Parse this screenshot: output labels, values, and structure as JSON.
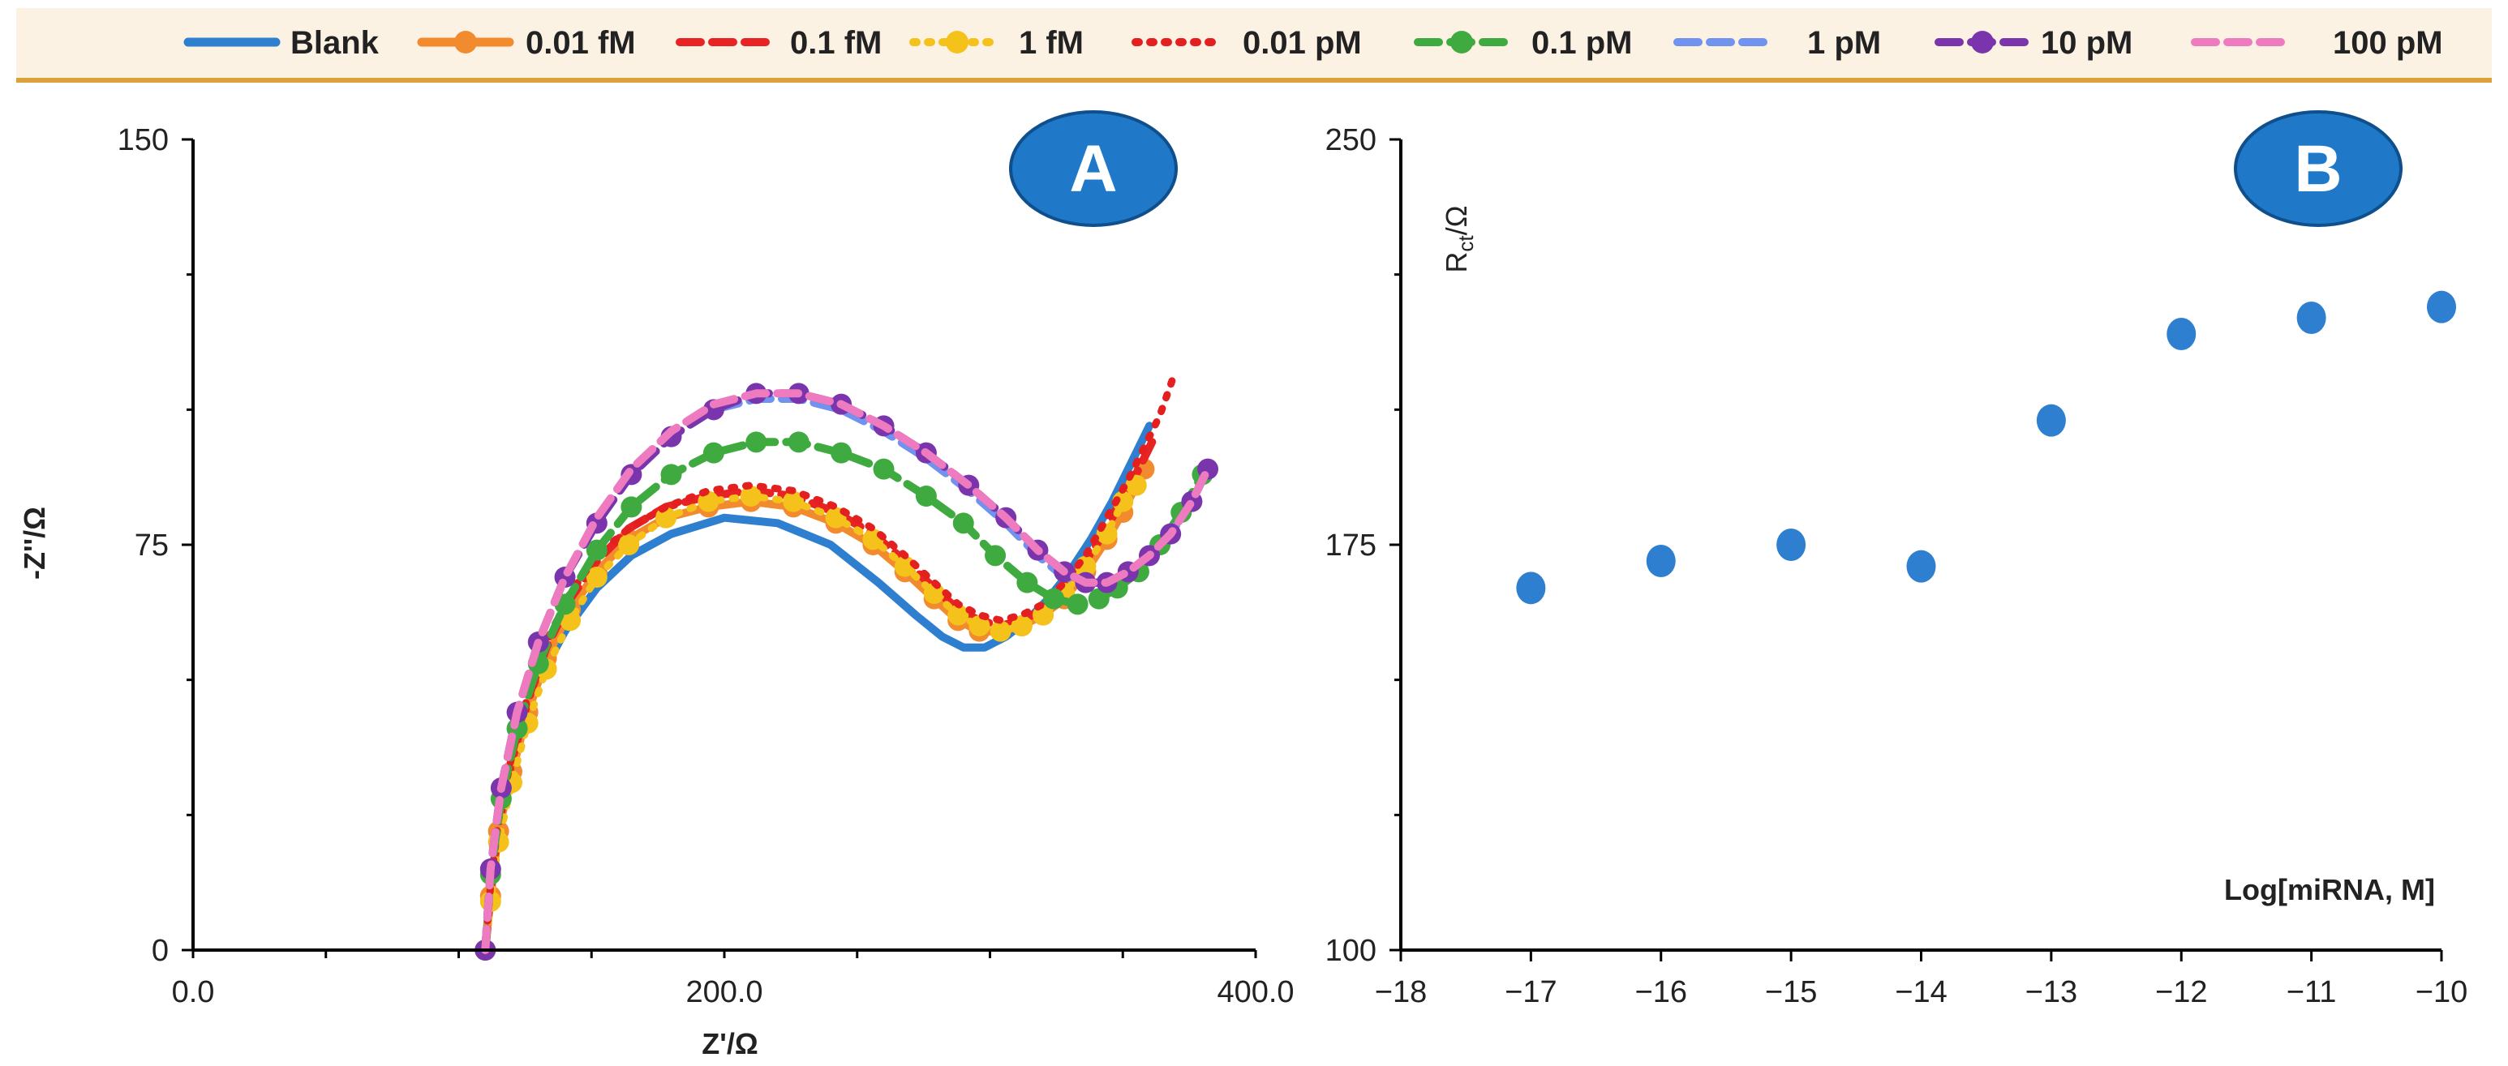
{
  "legend": [
    "Blank",
    "0.01 fM",
    "0.1 fM",
    "1 fM",
    "0.01 pM",
    "0.1 pM",
    "1 pM",
    "10 pM",
    "100 pM"
  ],
  "chart_data": [
    {
      "panel": "A",
      "type": "line",
      "title": "",
      "xlabel": "Z'/Ω",
      "ylabel": "-Z''/Ω",
      "xlim": [
        0,
        400
      ],
      "ylim": [
        0,
        150
      ],
      "xticks": [
        "0.0",
        "200.0",
        "400.0"
      ],
      "yticks": [
        "0",
        "75",
        "150"
      ],
      "series": [
        {
          "name": "Blank",
          "color": "#2f7fd0",
          "style": "solid",
          "marker": "none",
          "x": [
            110,
            112,
            116,
            122,
            130,
            140,
            152,
            165,
            180,
            200,
            220,
            240,
            258,
            272,
            282,
            290,
            298,
            306,
            314,
            322,
            330,
            338,
            346,
            352,
            357,
            360
          ],
          "y": [
            0,
            12,
            26,
            38,
            50,
            59,
            67,
            73,
            77,
            80,
            79,
            75,
            68,
            62,
            58,
            56,
            56,
            58,
            61,
            65,
            70,
            76,
            83,
            89,
            94,
            97
          ]
        },
        {
          "name": "0.01 fM",
          "color": "#f28a2e",
          "style": "solid",
          "marker": "circle",
          "x": [
            110,
            112,
            115,
            120,
            126,
            133,
            142,
            152,
            164,
            178,
            194,
            210,
            226,
            242,
            256,
            268,
            279,
            288,
            296,
            304,
            312,
            320,
            328,
            336,
            344,
            350,
            355,
            358
          ],
          "y": [
            0,
            10,
            22,
            33,
            44,
            54,
            63,
            70,
            76,
            80,
            82,
            83,
            82,
            79,
            75,
            70,
            65,
            61,
            59,
            59,
            60,
            62,
            65,
            70,
            76,
            81,
            86,
            89
          ]
        },
        {
          "name": "0.1 fM",
          "color": "#e82323",
          "style": "dashed",
          "marker": "none",
          "x": [
            110,
            112,
            115,
            120,
            126,
            133,
            142,
            152,
            164,
            178,
            194,
            210,
            226,
            242,
            256,
            268,
            279,
            288,
            296,
            304,
            312,
            320,
            328,
            336,
            344,
            350,
            356,
            361
          ],
          "y": [
            0,
            11,
            23,
            35,
            46,
            56,
            65,
            72,
            78,
            82,
            84,
            85,
            84,
            81,
            77,
            72,
            67,
            63,
            61,
            60,
            61,
            63,
            67,
            72,
            78,
            84,
            89,
            94
          ]
        },
        {
          "name": "1 fM",
          "color": "#f5c21b",
          "style": "dotted",
          "marker": "circle",
          "x": [
            110,
            112,
            115,
            120,
            126,
            133,
            142,
            152,
            164,
            178,
            194,
            210,
            226,
            242,
            256,
            268,
            279,
            288,
            296,
            304,
            312,
            320,
            328,
            336,
            344,
            350,
            355
          ],
          "y": [
            0,
            9,
            20,
            31,
            42,
            52,
            61,
            69,
            75,
            80,
            83,
            84,
            83,
            80,
            76,
            71,
            66,
            62,
            60,
            59,
            60,
            62,
            66,
            71,
            77,
            83,
            86
          ]
        },
        {
          "name": "0.01 pM",
          "color": "#e41f1f",
          "style": "dotted",
          "marker": "none",
          "x": [
            110,
            112,
            115,
            120,
            126,
            133,
            142,
            152,
            164,
            178,
            194,
            210,
            226,
            242,
            256,
            268,
            279,
            288,
            296,
            304,
            312,
            320,
            328,
            336,
            344,
            352,
            358,
            364,
            369
          ],
          "y": [
            0,
            12,
            24,
            36,
            47,
            57,
            66,
            73,
            78,
            82,
            85,
            86,
            85,
            82,
            78,
            73,
            68,
            64,
            62,
            61,
            62,
            64,
            68,
            73,
            80,
            87,
            93,
            99,
            106
          ]
        },
        {
          "name": "0.1 pM",
          "color": "#3faa3f",
          "style": "dashed",
          "marker": "circle",
          "x": [
            110,
            112,
            116,
            122,
            130,
            140,
            152,
            165,
            180,
            196,
            212,
            228,
            244,
            260,
            276,
            290,
            302,
            314,
            324,
            333,
            341,
            348,
            356,
            364,
            372,
            380
          ],
          "y": [
            0,
            14,
            28,
            41,
            53,
            64,
            74,
            82,
            88,
            92,
            94,
            94,
            92,
            89,
            84,
            79,
            73,
            68,
            65,
            64,
            65,
            67,
            70,
            75,
            81,
            88
          ]
        },
        {
          "name": "1 pM",
          "color": "#6f93ee",
          "style": "dashed",
          "marker": "none",
          "x": [
            110,
            112,
            116,
            122,
            130,
            140,
            152,
            165,
            180,
            196,
            212,
            228,
            244,
            260,
            276,
            292,
            306,
            318,
            328,
            336,
            344,
            352,
            360,
            368,
            376,
            382
          ],
          "y": [
            0,
            15,
            30,
            44,
            57,
            69,
            79,
            88,
            95,
            100,
            102,
            102,
            100,
            96,
            91,
            85,
            79,
            73,
            69,
            68,
            68,
            70,
            73,
            77,
            83,
            89
          ]
        },
        {
          "name": "10 pM",
          "color": "#7a35ad",
          "style": "dashed",
          "marker": "circle",
          "x": [
            110,
            112,
            116,
            122,
            130,
            140,
            152,
            165,
            180,
            196,
            212,
            228,
            244,
            260,
            276,
            292,
            306,
            318,
            328,
            336,
            344,
            352,
            360,
            368,
            376,
            382
          ],
          "y": [
            0,
            15,
            30,
            44,
            57,
            69,
            79,
            88,
            95,
            100,
            103,
            103,
            101,
            97,
            92,
            86,
            80,
            74,
            70,
            68,
            68,
            70,
            73,
            77,
            83,
            89
          ]
        },
        {
          "name": "100 pM",
          "color": "#ee7bbf",
          "style": "dashed",
          "marker": "none",
          "x": [
            110,
            112,
            116,
            122,
            130,
            140,
            152,
            165,
            180,
            196,
            212,
            228,
            244,
            260,
            276,
            292,
            306,
            318,
            328,
            336,
            344,
            352,
            360,
            368,
            376,
            382
          ],
          "y": [
            0,
            15,
            30,
            44,
            57,
            69,
            80,
            89,
            96,
            101,
            103,
            103,
            101,
            97,
            92,
            86,
            80,
            74,
            70,
            68,
            68,
            70,
            73,
            77,
            83,
            89
          ]
        }
      ]
    },
    {
      "panel": "B",
      "type": "scatter",
      "title": "",
      "xlabel": "Log[miRNA, M]",
      "ylabel": "Rct/Ω",
      "xlim": [
        -18,
        -10
      ],
      "ylim": [
        100,
        250
      ],
      "xticks": [
        "-18",
        "-17",
        "-16",
        "-15",
        "-14",
        "-13",
        "-12",
        "-11",
        "-10"
      ],
      "yticks": [
        "100",
        "175",
        "250"
      ],
      "color": "#2f7fd0",
      "x": [
        -17,
        -16,
        -15,
        -14,
        -13,
        -12,
        -11,
        -10
      ],
      "y": [
        167,
        172,
        175,
        171,
        198,
        214,
        217,
        219
      ]
    }
  ]
}
